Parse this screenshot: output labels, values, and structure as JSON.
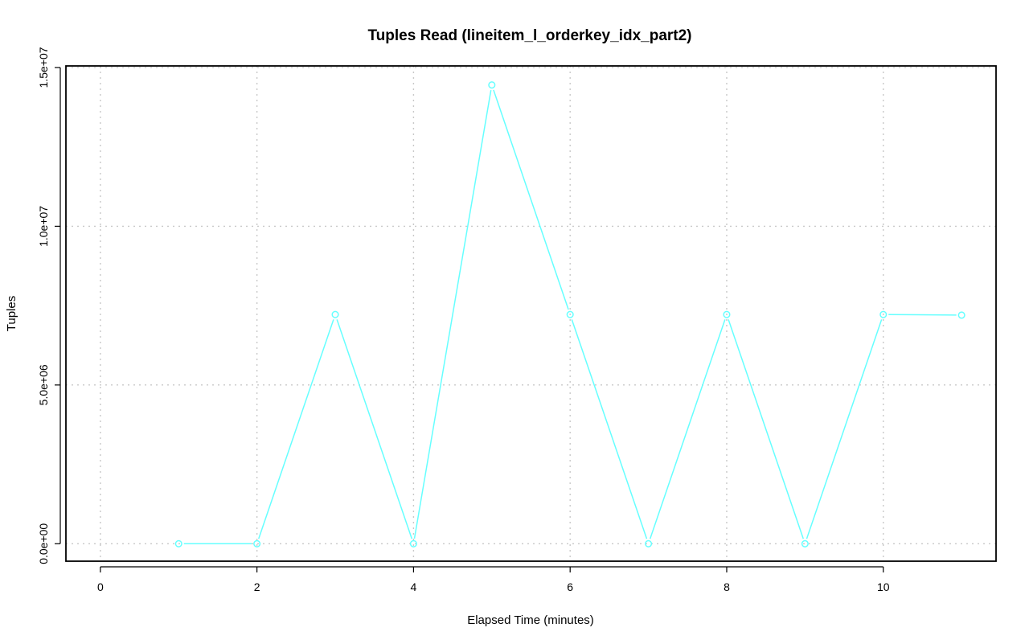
{
  "chart_data": {
    "type": "line",
    "title": "Tuples Read (lineitem_l_orderkey_idx_part2)",
    "xlabel": "Elapsed Time (minutes)",
    "ylabel": "Tuples",
    "xlim": [
      -0.44,
      11.44
    ],
    "ylim": [
      -550000,
      15050000
    ],
    "x_ticks": [
      0,
      2,
      4,
      6,
      8,
      10
    ],
    "x_tick_labels": [
      "0",
      "2",
      "4",
      "6",
      "8",
      "10"
    ],
    "y_ticks": [
      0,
      5000000,
      10000000,
      15000000
    ],
    "y_tick_labels": [
      "0.0e+00",
      "5.0e+06",
      "1.0e+07",
      "1.5e+07"
    ],
    "grid": true,
    "series": [
      {
        "color": "#66ffff",
        "marker": "open-circle",
        "x": [
          1,
          2,
          3,
          4,
          5,
          6,
          7,
          8,
          9,
          10,
          11
        ],
        "values": [
          0,
          0,
          7220000,
          0,
          14450000,
          7220000,
          0,
          7220000,
          0,
          7220000,
          7200000
        ]
      }
    ]
  }
}
